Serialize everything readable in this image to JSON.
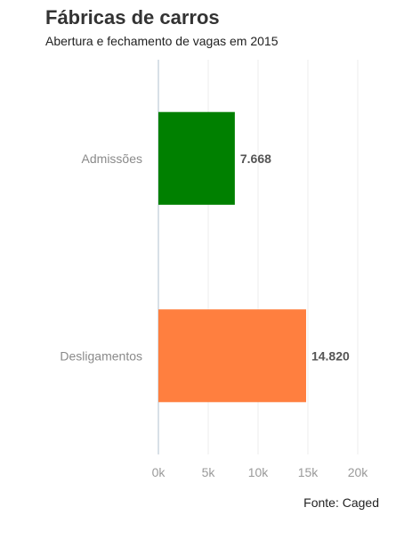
{
  "chart_data": {
    "type": "bar",
    "orientation": "horizontal",
    "title": "Fábricas de carros",
    "subtitle": "Abertura e fechamento de vagas em 2015",
    "categories": [
      "Admissões",
      "Desligamentos"
    ],
    "values": [
      7668,
      14820
    ],
    "value_labels": [
      "7.668",
      "14.820"
    ],
    "colors": [
      "#008000",
      "#FF7F3F"
    ],
    "xlim": [
      0,
      20000
    ],
    "x_ticks": [
      0,
      5000,
      10000,
      15000,
      20000
    ],
    "x_tick_labels": [
      "0k",
      "5k",
      "10k",
      "15k",
      "20k"
    ],
    "grid": "vertical",
    "source": "Fonte: Caged"
  }
}
